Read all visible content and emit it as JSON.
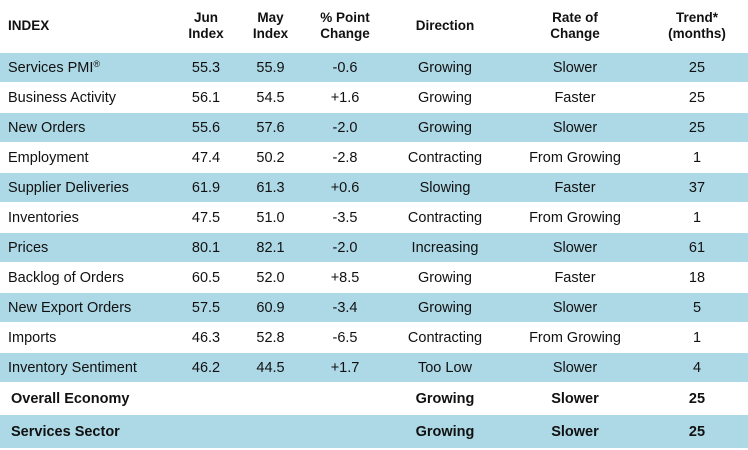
{
  "headers": {
    "index": "INDEX",
    "jun_line1": "Jun",
    "jun_line2": "Index",
    "may_line1": "May",
    "may_line2": "Index",
    "chg_line1": "% Point",
    "chg_line2": "Change",
    "direction": "Direction",
    "rate_line1": "Rate of",
    "rate_line2": "Change",
    "trend_line1": "Trend*",
    "trend_line2": "(months)"
  },
  "rows": [
    {
      "name": "Services PMI",
      "sup": "®",
      "jun": "55.3",
      "may": "55.9",
      "change": "-0.6",
      "direction": "Growing",
      "rate": "Slower",
      "trend": "25"
    },
    {
      "name": "Business Activity",
      "jun": "56.1",
      "may": "54.5",
      "change": "+1.6",
      "direction": "Growing",
      "rate": "Faster",
      "trend": "25"
    },
    {
      "name": "New Orders",
      "jun": "55.6",
      "may": "57.6",
      "change": "-2.0",
      "direction": "Growing",
      "rate": "Slower",
      "trend": "25"
    },
    {
      "name": "Employment",
      "jun": "47.4",
      "may": "50.2",
      "change": "-2.8",
      "direction": "Contracting",
      "rate": "From Growing",
      "trend": "1"
    },
    {
      "name": "Supplier Deliveries",
      "jun": "61.9",
      "may": "61.3",
      "change": "+0.6",
      "direction": "Slowing",
      "rate": "Faster",
      "trend": "37"
    },
    {
      "name": "Inventories",
      "jun": "47.5",
      "may": "51.0",
      "change": "-3.5",
      "direction": "Contracting",
      "rate": "From Growing",
      "trend": "1"
    },
    {
      "name": "Prices",
      "jun": "80.1",
      "may": "82.1",
      "change": "-2.0",
      "direction": "Increasing",
      "rate": "Slower",
      "trend": "61"
    },
    {
      "name": "Backlog of Orders",
      "jun": "60.5",
      "may": "52.0",
      "change": "+8.5",
      "direction": "Growing",
      "rate": "Faster",
      "trend": "18"
    },
    {
      "name": "New Export Orders",
      "jun": "57.5",
      "may": "60.9",
      "change": "-3.4",
      "direction": "Growing",
      "rate": "Slower",
      "trend": "5"
    },
    {
      "name": "Imports",
      "jun": "46.3",
      "may": "52.8",
      "change": "-6.5",
      "direction": "Contracting",
      "rate": "From Growing",
      "trend": "1"
    },
    {
      "name": "Inventory Sentiment",
      "jun": "46.2",
      "may": "44.5",
      "change": "+1.7",
      "direction": "Too Low",
      "rate": "Slower",
      "trend": "4"
    }
  ],
  "summary": [
    {
      "name": "Overall Economy",
      "direction": "Growing",
      "rate": "Slower",
      "trend": "25"
    },
    {
      "name": "Services Sector",
      "direction": "Growing",
      "rate": "Slower",
      "trend": "25"
    }
  ],
  "colors": {
    "row_band": "#add8e6",
    "background": "#ffffff"
  }
}
